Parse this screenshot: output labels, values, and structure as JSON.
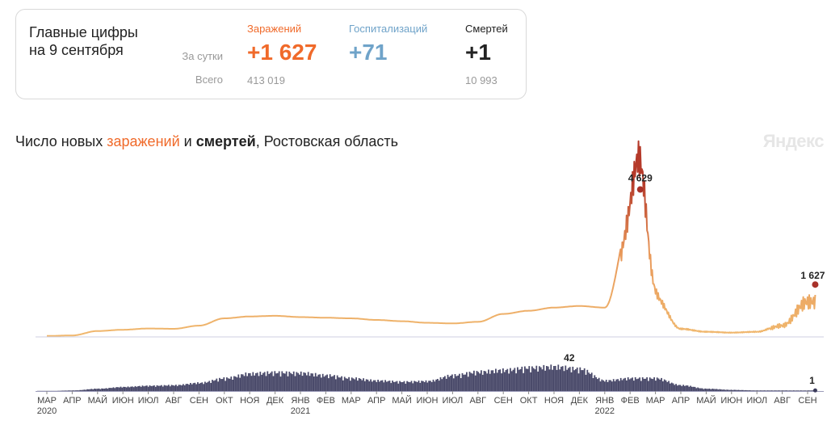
{
  "summary": {
    "headline_line1": "Главные цифры",
    "headline_line2": "на 9 сентября",
    "daily_label": "За сутки",
    "total_label": "Всего",
    "infections": {
      "label": "Заражений",
      "daily": "+1 627",
      "total": "413 019",
      "color": "#f06a2a"
    },
    "hospitalizations": {
      "label": "Госпитализаций",
      "daily": "+71",
      "total": "",
      "color": "#6fa3c9"
    },
    "deaths": {
      "label": "Смертей",
      "daily": "+1",
      "total": "10 993",
      "color": "#222222"
    }
  },
  "chart": {
    "title_prefix": "Число новых ",
    "title_infections": "заражений",
    "title_and": " и ",
    "title_deaths": "смертей",
    "title_suffix": ", Ростовская область",
    "watermark": "Яндекс"
  },
  "chart_data": {
    "type": "line",
    "region": "Ростовская область",
    "x_months": [
      "МАР",
      "АПР",
      "МАЙ",
      "ИЮН",
      "ИЮЛ",
      "АВГ",
      "СЕН",
      "ОКТ",
      "НОЯ",
      "ДЕК",
      "ЯНВ",
      "ФЕВ",
      "МАР",
      "АПР",
      "МАЙ",
      "ИЮН",
      "ИЮЛ",
      "АВГ",
      "СЕН",
      "ОКТ",
      "НОЯ",
      "ДЕК",
      "ЯНВ",
      "ФЕВ",
      "МАР",
      "АПР",
      "МАЙ",
      "ИЮН",
      "ИЮЛ",
      "АВГ",
      "СЕН"
    ],
    "years": [
      {
        "label": "2020",
        "month_index": 0
      },
      {
        "label": "2021",
        "month_index": 10
      },
      {
        "label": "2022",
        "month_index": 22
      }
    ],
    "infections": {
      "color_low": "#f0b86e",
      "color_high": "#b53a2a",
      "monthly_values": [
        5,
        20,
        160,
        200,
        240,
        230,
        330,
        560,
        620,
        640,
        600,
        580,
        560,
        510,
        470,
        420,
        400,
        450,
        700,
        800,
        900,
        950,
        900,
        3500,
        1300,
        250,
        150,
        120,
        150,
        400,
        1300
      ],
      "peak": {
        "month_index": 23.4,
        "value": 4629,
        "label": "4 629"
      },
      "last": {
        "month_index": 30.3,
        "value": 1627,
        "label": "1 627"
      },
      "ylim": [
        0,
        5000
      ]
    },
    "deaths": {
      "color": "#4a4a6a",
      "monthly_values": [
        0,
        1,
        4,
        7,
        9,
        10,
        14,
        22,
        30,
        32,
        31,
        27,
        22,
        18,
        16,
        17,
        27,
        33,
        36,
        40,
        42,
        38,
        18,
        22,
        22,
        10,
        4,
        2,
        1,
        1,
        1
      ],
      "peak": {
        "month_index": 20.6,
        "value": 42,
        "label": "42"
      },
      "last": {
        "month_index": 30.3,
        "value": 1,
        "label": "1"
      },
      "ylim": [
        0,
        50
      ]
    }
  }
}
